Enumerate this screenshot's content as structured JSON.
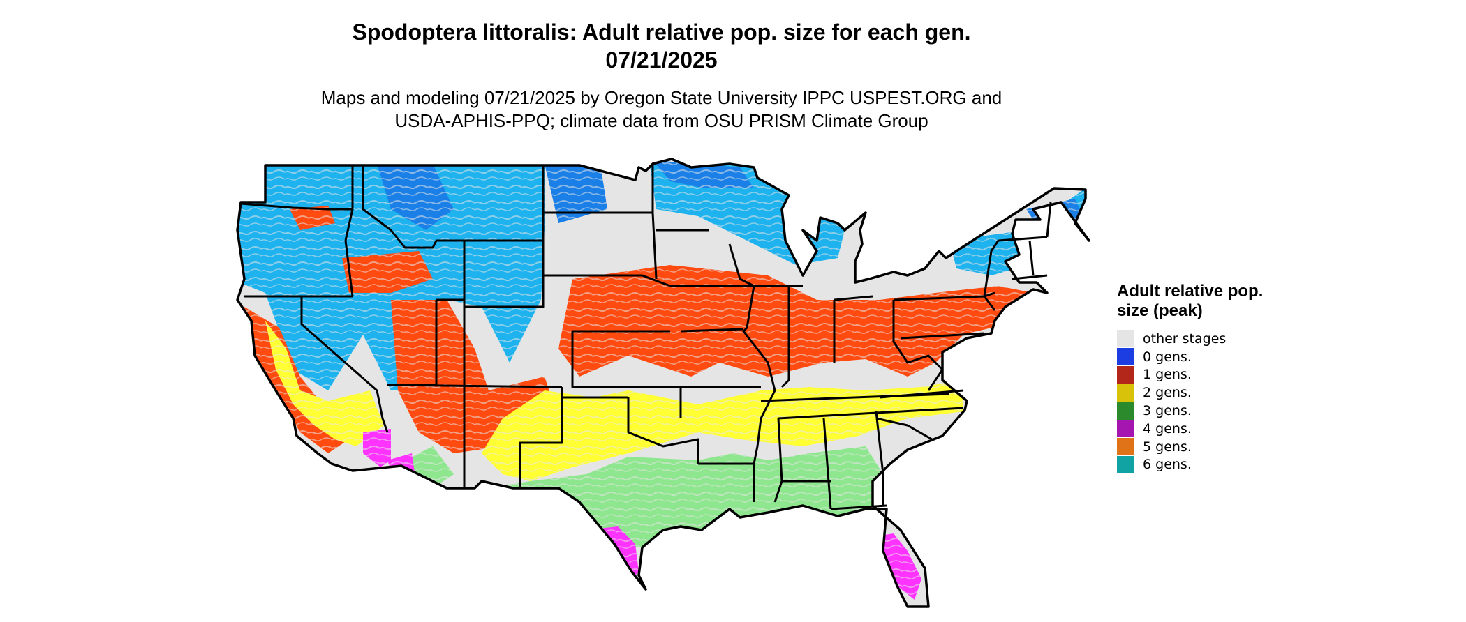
{
  "title_line1": "Spodoptera littoralis: Adult relative pop. size for each gen.",
  "title_line2": "07/21/2025",
  "subtitle_line1": "Maps and modeling 07/21/2025 by Oregon State University IPPC USPEST.ORG and",
  "subtitle_line2": "USDA-APHIS-PPQ; climate data from OSU PRISM Climate Group",
  "legend": {
    "title": "Adult relative pop. size (peak)",
    "items": [
      {
        "label": "other stages",
        "color": "#e5e5e5"
      },
      {
        "label": "0 gens.",
        "color": "#1b3de1"
      },
      {
        "label": "1 gens.",
        "color": "#b3271b"
      },
      {
        "label": "2 gens.",
        "color": "#d9c30a"
      },
      {
        "label": "3 gens.",
        "color": "#2b8a2b"
      },
      {
        "label": "4 gens.",
        "color": "#a516b0"
      },
      {
        "label": "5 gens.",
        "color": "#e07317"
      },
      {
        "label": "6 gens.",
        "color": "#11a3a3"
      }
    ]
  },
  "map_colors": {
    "background": "#e5e5e5",
    "zero_gens_light": "#1eb2ee",
    "zero_gens_dark": "#1a7fe6",
    "one_gen": "#ff4a10",
    "two_gens": "#ffff33",
    "three_gens": "#8ee68e",
    "four_gens": "#ff33ff",
    "five_gens": "#ff9933",
    "border": "#000000"
  }
}
